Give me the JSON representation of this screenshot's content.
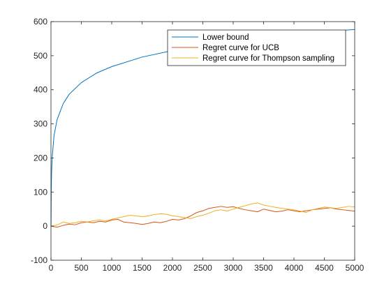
{
  "chart_data": {
    "type": "line",
    "title": "",
    "xlabel": "",
    "ylabel": "",
    "xlim": [
      0,
      5000
    ],
    "ylim": [
      -100,
      600
    ],
    "xticks": [
      0,
      500,
      1000,
      1500,
      2000,
      2500,
      3000,
      3500,
      4000,
      4500,
      5000
    ],
    "yticks": [
      -100,
      0,
      100,
      200,
      300,
      400,
      500,
      600
    ],
    "grid": false,
    "legend_position": "top-right",
    "series": [
      {
        "name": "Lower bound",
        "color": "#0072BD",
        "x": [
          1,
          5,
          10,
          20,
          50,
          100,
          200,
          300,
          500,
          750,
          1000,
          1500,
          2000,
          2500,
          3000,
          3500,
          4000,
          4500,
          5000
        ],
        "y": [
          0,
          108,
          155,
          202,
          265,
          312,
          359,
          387,
          421,
          449,
          468,
          496,
          515,
          530,
          543,
          553,
          562,
          570,
          577
        ]
      },
      {
        "name": "Regret curve for UCB",
        "color": "#D95319",
        "x": [
          0,
          100,
          200,
          300,
          400,
          500,
          600,
          700,
          800,
          900,
          1000,
          1100,
          1200,
          1300,
          1400,
          1500,
          1600,
          1700,
          1800,
          1900,
          2000,
          2100,
          2200,
          2300,
          2400,
          2500,
          2600,
          2700,
          2800,
          2900,
          3000,
          3100,
          3200,
          3300,
          3400,
          3500,
          3600,
          3700,
          3800,
          3900,
          4000,
          4100,
          4200,
          4300,
          4400,
          4500,
          4600,
          4700,
          4800,
          4900,
          5000
        ],
        "y": [
          0,
          -3,
          2,
          6,
          4,
          10,
          12,
          10,
          14,
          12,
          18,
          20,
          12,
          10,
          8,
          5,
          8,
          12,
          10,
          14,
          20,
          18,
          22,
          30,
          40,
          45,
          52,
          55,
          58,
          55,
          57,
          52,
          48,
          45,
          42,
          50,
          46,
          42,
          44,
          48,
          45,
          42,
          45,
          48,
          50,
          52,
          54,
          50,
          48,
          46,
          44
        ]
      },
      {
        "name": "Regret curve for Thompson sampling",
        "color": "#EDB120",
        "x": [
          0,
          100,
          200,
          300,
          400,
          500,
          600,
          700,
          800,
          900,
          1000,
          1100,
          1200,
          1300,
          1400,
          1500,
          1600,
          1700,
          1800,
          1900,
          2000,
          2100,
          2200,
          2300,
          2400,
          2500,
          2600,
          2700,
          2800,
          2900,
          3000,
          3100,
          3200,
          3300,
          3400,
          3500,
          3600,
          3700,
          3800,
          3900,
          4000,
          4100,
          4200,
          4300,
          4400,
          4500,
          4600,
          4700,
          4800,
          4900,
          5000
        ],
        "y": [
          0,
          3,
          12,
          8,
          10,
          14,
          12,
          16,
          18,
          15,
          20,
          24,
          28,
          32,
          30,
          28,
          30,
          34,
          36,
          35,
          30,
          28,
          25,
          22,
          28,
          32,
          38,
          45,
          48,
          44,
          50,
          55,
          60,
          65,
          68,
          62,
          58,
          55,
          52,
          50,
          48,
          44,
          40,
          48,
          52,
          56,
          54,
          52,
          55,
          58,
          56
        ]
      }
    ]
  }
}
